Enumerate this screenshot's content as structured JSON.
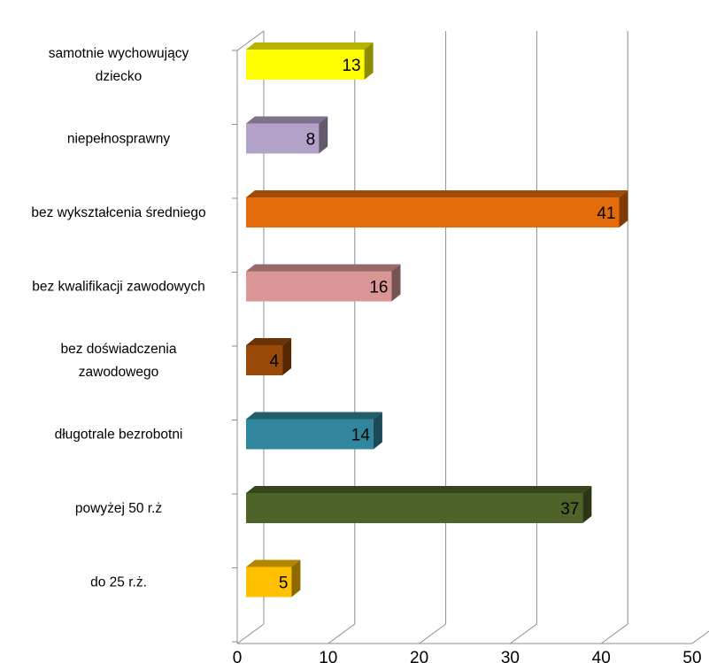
{
  "chart_data": {
    "type": "bar",
    "orientation": "horizontal",
    "style": "3d",
    "categories": [
      [
        "samotnie wychowujący",
        "dziecko"
      ],
      [
        "niepełnosprawny"
      ],
      [
        "bez wykształcenia średniego"
      ],
      [
        "bez kwalifikacji zawodowych"
      ],
      [
        "bez doświadczenia",
        "zawodowego"
      ],
      [
        "długotrale bezrobotni"
      ],
      [
        "powyżej 50 r.ż"
      ],
      [
        "do 25 r.ż."
      ]
    ],
    "values": [
      13,
      8,
      41,
      16,
      4,
      14,
      37,
      5
    ],
    "data_labels": [
      "13",
      "8",
      "41",
      "16",
      "4",
      "14",
      "37",
      "5"
    ],
    "colors": [
      "#FFFF00",
      "#B3A2C7",
      "#E46C0A",
      "#D99694",
      "#984807",
      "#31859C",
      "#4F6228",
      "#FFC000"
    ],
    "xlim": [
      0,
      50
    ],
    "x_ticks": [
      "0",
      "10",
      "20",
      "30",
      "40",
      "50"
    ],
    "grid": "vertical",
    "legend": "none",
    "title": "",
    "xlabel": "",
    "ylabel": ""
  }
}
